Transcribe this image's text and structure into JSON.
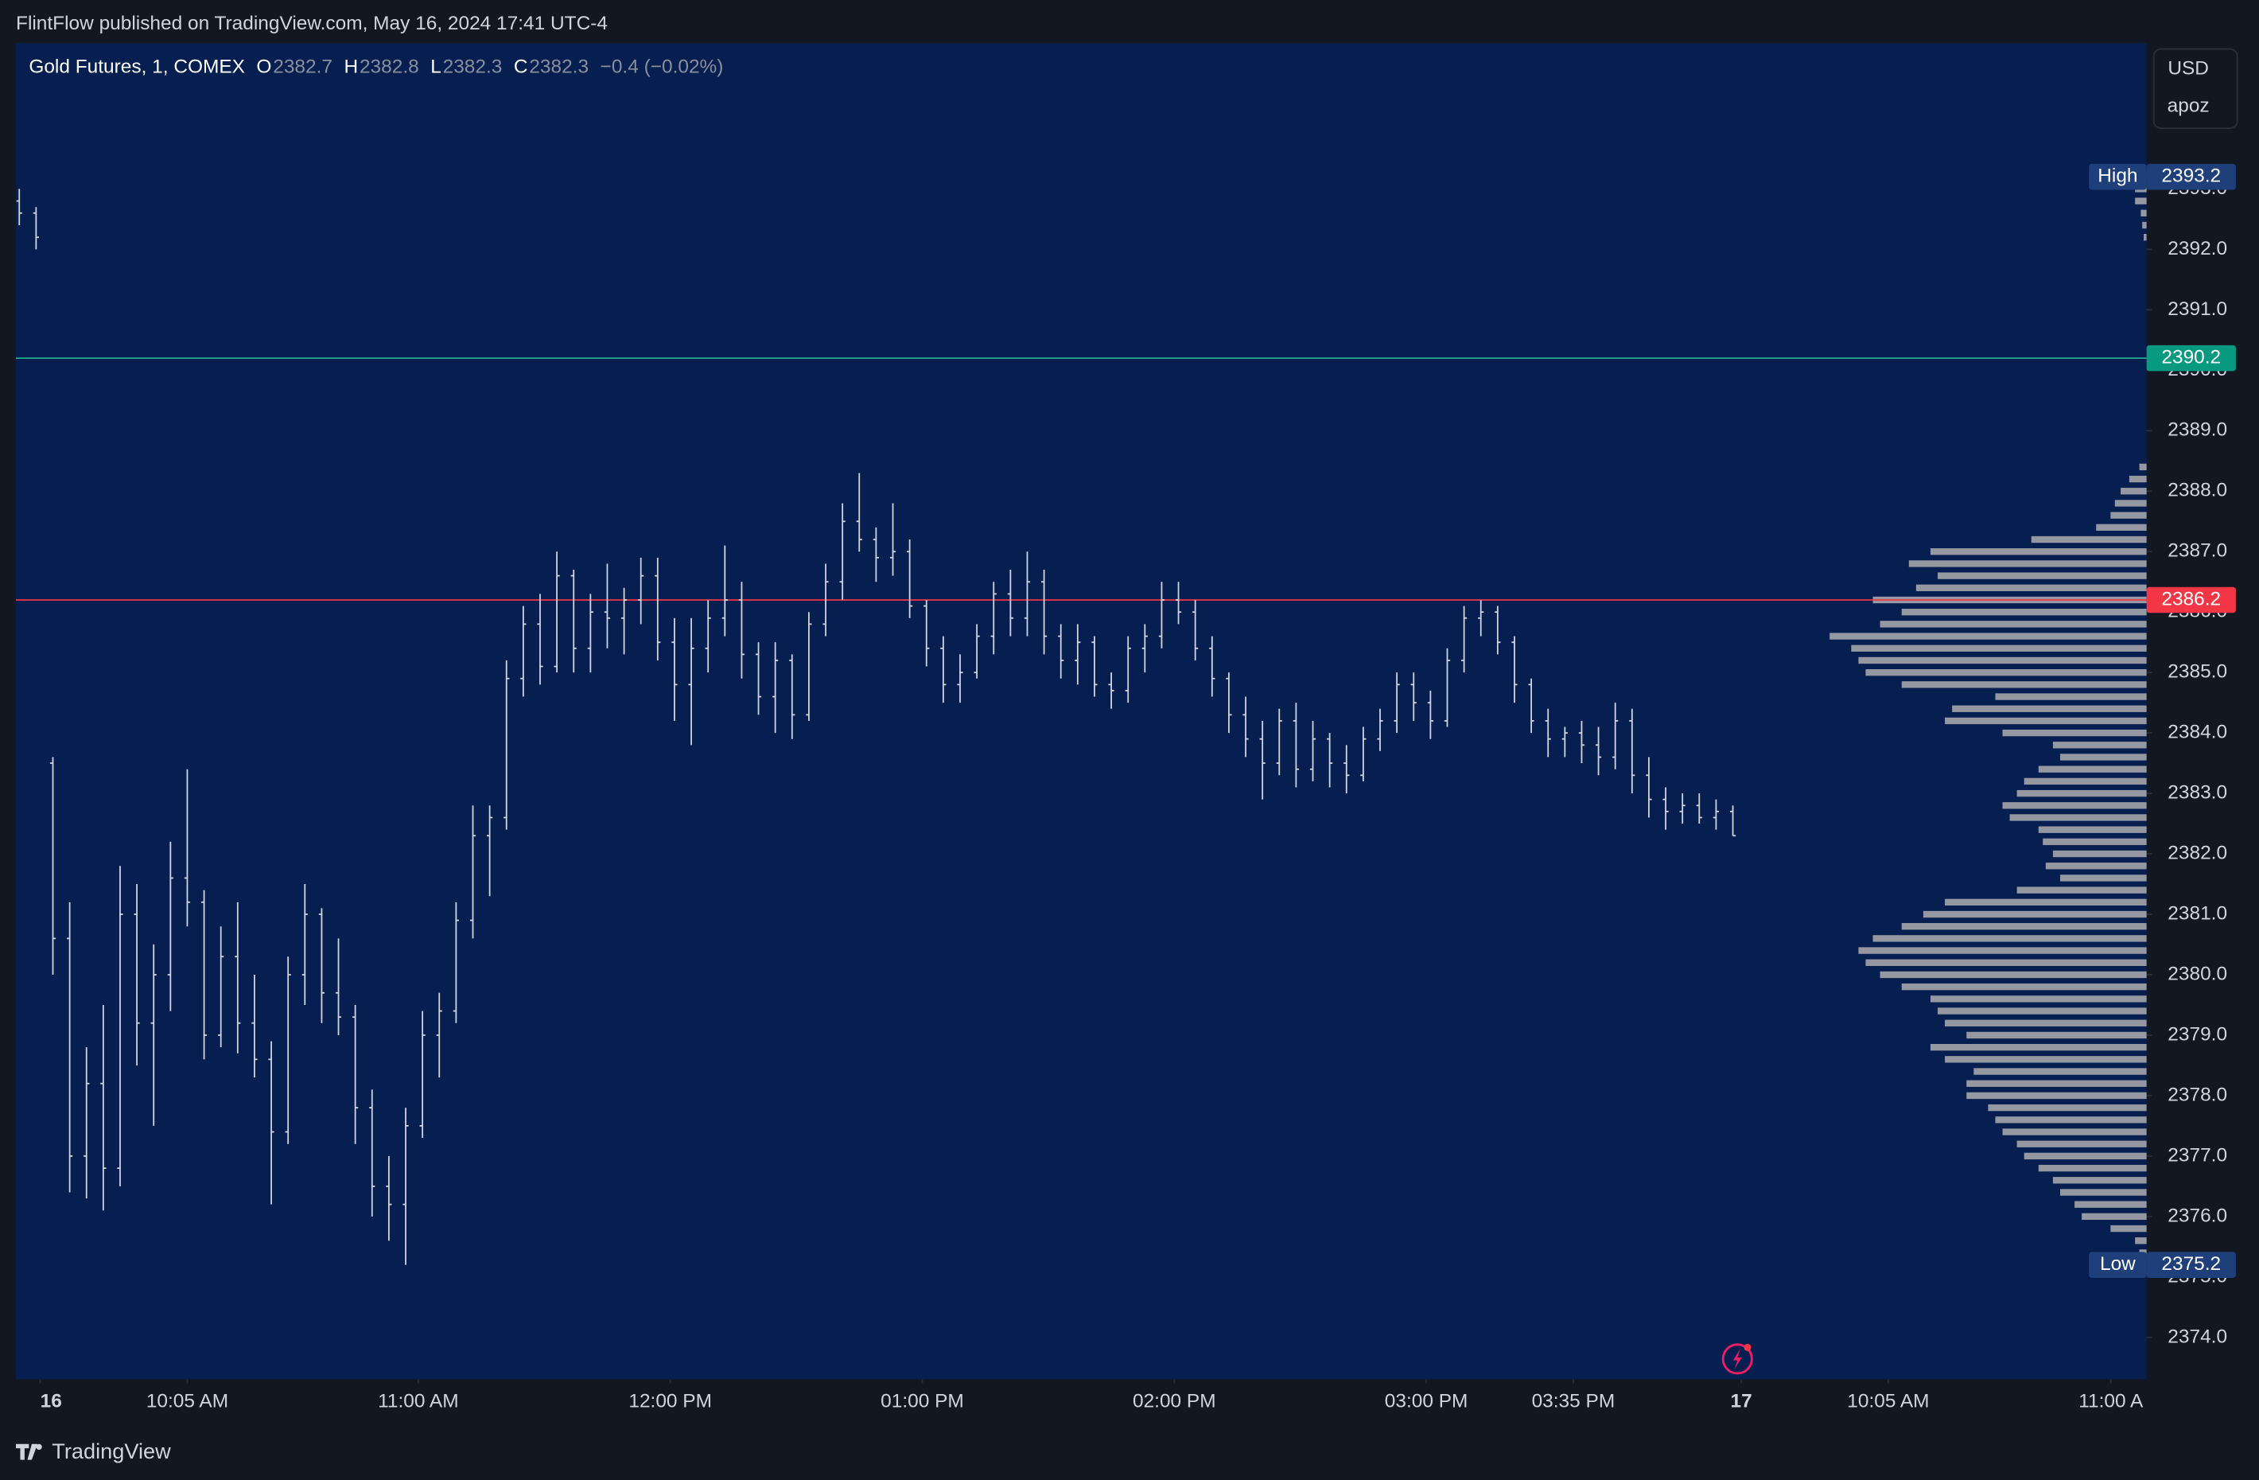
{
  "header": {
    "text": "FlintFlow published on TradingView.com, May 16, 2024 17:41 UTC-4"
  },
  "footer": {
    "brand": "TradingView"
  },
  "scale_box": {
    "currency": "USD",
    "mode": "apoz"
  },
  "chart_data": {
    "type": "ohlc",
    "legend": {
      "symbol": "Gold Futures, 1, COMEX",
      "o_label": "O",
      "open": 2382.7,
      "h_label": "H",
      "high": 2382.8,
      "l_label": "L",
      "low": 2382.3,
      "c_label": "C",
      "close": 2382.3,
      "change": "−0.4 (−0.02%)"
    },
    "color": "#d1d4dc",
    "x": [
      -5,
      -1,
      3,
      7,
      11,
      15,
      19,
      23,
      27,
      31,
      35,
      39,
      43,
      47,
      51,
      55,
      59,
      63,
      67,
      71,
      75,
      79,
      83,
      87,
      91,
      95,
      99,
      103,
      107,
      111,
      115,
      119,
      123,
      127,
      131,
      135,
      139,
      143,
      147,
      151,
      155,
      159,
      163,
      167,
      171,
      175,
      179,
      183,
      187,
      191,
      195,
      199,
      203,
      207,
      211,
      215,
      219,
      223,
      227,
      231,
      235,
      239,
      243,
      247,
      251,
      255,
      259,
      263,
      267,
      271,
      275,
      279,
      283,
      287,
      291,
      295,
      299,
      303,
      307,
      311,
      315,
      319,
      323,
      327,
      331,
      335,
      339,
      343,
      347,
      351,
      355,
      359,
      363,
      367,
      371,
      375,
      379,
      383,
      387,
      391,
      395,
      399,
      403
    ],
    "open": [
      2392.8,
      2392.6,
      2383.5,
      2380.6,
      2377.0,
      2378.2,
      2376.8,
      2381.0,
      2379.2,
      2380.0,
      2381.6,
      2381.2,
      2379.0,
      2380.3,
      2379.2,
      2378.6,
      2377.4,
      2380.0,
      2381.0,
      2379.7,
      2379.3,
      2377.8,
      2376.5,
      2376.2,
      2377.5,
      2379.0,
      2379.4,
      2380.9,
      2382.3,
      2382.6,
      2384.9,
      2385.8,
      2385.1,
      2386.6,
      2385.4,
      2386.0,
      2385.9,
      2386.2,
      2386.6,
      2385.5,
      2384.8,
      2385.4,
      2385.9,
      2386.2,
      2385.3,
      2384.6,
      2385.2,
      2384.3,
      2385.8,
      2386.5,
      2387.5,
      2387.2,
      2386.9,
      2387.0,
      2386.1,
      2385.4,
      2384.8,
      2385.0,
      2385.6,
      2386.3,
      2385.9,
      2386.5,
      2385.6,
      2385.2,
      2385.5,
      2384.8,
      2384.7,
      2385.4,
      2385.6,
      2386.2,
      2386.0,
      2385.4,
      2384.9,
      2384.3,
      2383.9,
      2383.5,
      2384.2,
      2383.4,
      2383.9,
      2383.5,
      2383.3,
      2383.9,
      2384.2,
      2384.8,
      2384.5,
      2384.2,
      2385.2,
      2385.9,
      2386.0,
      2385.5,
      2384.8,
      2384.2,
      2383.9,
      2384.0,
      2383.8,
      2383.6,
      2384.2,
      2383.3,
      2382.9,
      2382.7,
      2382.8,
      2382.6,
      2382.7
    ],
    "high": [
      2393.0,
      2392.7,
      2383.6,
      2381.2,
      2378.8,
      2379.5,
      2381.8,
      2381.5,
      2380.5,
      2382.2,
      2383.4,
      2381.4,
      2380.8,
      2381.2,
      2380.0,
      2378.9,
      2380.3,
      2381.5,
      2381.1,
      2380.6,
      2379.5,
      2378.1,
      2377.0,
      2377.8,
      2379.4,
      2379.7,
      2381.2,
      2382.8,
      2382.8,
      2385.2,
      2386.1,
      2386.3,
      2387.0,
      2386.7,
      2386.3,
      2386.8,
      2386.4,
      2386.9,
      2386.9,
      2385.9,
      2385.9,
      2386.2,
      2387.1,
      2386.5,
      2385.5,
      2385.5,
      2385.3,
      2386.0,
      2386.8,
      2387.8,
      2388.3,
      2387.4,
      2387.8,
      2387.2,
      2386.2,
      2385.6,
      2385.3,
      2385.8,
      2386.5,
      2386.7,
      2387.0,
      2386.7,
      2385.8,
      2385.8,
      2385.6,
      2385.0,
      2385.6,
      2385.8,
      2386.5,
      2386.5,
      2386.2,
      2385.6,
      2385.0,
      2384.6,
      2384.2,
      2384.4,
      2384.5,
      2384.2,
      2384.0,
      2383.8,
      2384.1,
      2384.4,
      2385.0,
      2385.0,
      2384.7,
      2385.4,
      2386.1,
      2386.2,
      2386.1,
      2385.6,
      2384.9,
      2384.4,
      2384.1,
      2384.2,
      2384.1,
      2384.5,
      2384.4,
      2383.6,
      2383.1,
      2383.0,
      2383.0,
      2382.9,
      2382.8
    ],
    "low": [
      2392.4,
      2392.0,
      2380.0,
      2376.4,
      2376.3,
      2376.1,
      2376.5,
      2378.5,
      2377.5,
      2379.4,
      2380.8,
      2378.6,
      2378.8,
      2378.7,
      2378.3,
      2376.2,
      2377.2,
      2379.5,
      2379.2,
      2379.0,
      2377.2,
      2376.0,
      2375.6,
      2375.2,
      2377.3,
      2378.3,
      2379.2,
      2380.6,
      2381.3,
      2382.4,
      2384.6,
      2384.8,
      2385.0,
      2385.0,
      2385.0,
      2385.4,
      2385.3,
      2385.8,
      2385.2,
      2384.2,
      2383.8,
      2385.0,
      2385.6,
      2384.9,
      2384.3,
      2384.0,
      2383.9,
      2384.2,
      2385.6,
      2386.2,
      2387.0,
      2386.5,
      2386.6,
      2385.9,
      2385.1,
      2384.5,
      2384.5,
      2384.9,
      2385.3,
      2385.6,
      2385.6,
      2385.3,
      2384.9,
      2384.8,
      2384.6,
      2384.4,
      2384.5,
      2385.0,
      2385.4,
      2385.8,
      2385.2,
      2384.6,
      2384.0,
      2383.6,
      2382.9,
      2383.3,
      2383.1,
      2383.2,
      2383.1,
      2383.0,
      2383.2,
      2383.7,
      2384.0,
      2384.2,
      2383.9,
      2384.1,
      2385.0,
      2385.6,
      2385.3,
      2384.5,
      2384.0,
      2383.6,
      2383.6,
      2383.5,
      2383.3,
      2383.4,
      2383.0,
      2382.6,
      2382.4,
      2382.5,
      2382.5,
      2382.4,
      2382.3
    ],
    "close": [
      2392.6,
      2392.2,
      2380.6,
      2377.0,
      2378.2,
      2376.8,
      2381.0,
      2379.2,
      2380.0,
      2381.6,
      2381.2,
      2379.0,
      2380.3,
      2379.2,
      2378.6,
      2377.4,
      2380.0,
      2381.0,
      2379.7,
      2379.3,
      2377.8,
      2376.5,
      2376.2,
      2377.5,
      2379.0,
      2379.4,
      2380.9,
      2382.3,
      2382.6,
      2384.9,
      2385.8,
      2385.1,
      2386.6,
      2385.4,
      2386.0,
      2385.9,
      2386.2,
      2386.6,
      2385.5,
      2384.8,
      2385.4,
      2385.9,
      2386.2,
      2385.3,
      2384.6,
      2385.2,
      2384.3,
      2385.8,
      2386.5,
      2387.5,
      2387.2,
      2386.9,
      2387.0,
      2386.1,
      2385.4,
      2384.8,
      2385.0,
      2385.6,
      2386.3,
      2385.9,
      2386.5,
      2385.6,
      2385.2,
      2385.5,
      2384.8,
      2384.7,
      2385.4,
      2385.6,
      2386.2,
      2386.0,
      2385.4,
      2384.9,
      2384.3,
      2383.9,
      2383.5,
      2384.2,
      2383.4,
      2383.9,
      2383.5,
      2383.3,
      2383.9,
      2384.2,
      2384.8,
      2384.5,
      2384.2,
      2385.2,
      2385.9,
      2386.0,
      2385.5,
      2384.8,
      2384.2,
      2383.9,
      2384.0,
      2383.8,
      2383.6,
      2384.2,
      2383.3,
      2382.9,
      2382.7,
      2382.8,
      2382.6,
      2382.7,
      2382.3
    ],
    "xlim": [
      -5.8,
      501.5
    ],
    "ylim": [
      2373.31,
      2395.41
    ],
    "xticks": [
      {
        "value": 0,
        "label": "16"
      },
      {
        "value": 35,
        "label": "10:05 AM"
      },
      {
        "value": 90,
        "label": "11:00 AM"
      },
      {
        "value": 150,
        "label": "12:00 PM"
      },
      {
        "value": 210,
        "label": "01:00 PM"
      },
      {
        "value": 270,
        "label": "02:00 PM"
      },
      {
        "value": 330,
        "label": "03:00 PM"
      },
      {
        "value": 365,
        "label": "03:35 PM"
      },
      {
        "value": 405,
        "label": "17"
      },
      {
        "value": 440,
        "label": "10:05 AM"
      },
      {
        "value": 493,
        "label": "11:00 A"
      }
    ],
    "yticks": [
      {
        "value": 2374,
        "label": "2374.0"
      },
      {
        "value": 2375,
        "label": "2375.0"
      },
      {
        "value": 2376,
        "label": "2376.0"
      },
      {
        "value": 2377,
        "label": "2377.0"
      },
      {
        "value": 2378,
        "label": "2378.0"
      },
      {
        "value": 2379,
        "label": "2379.0"
      },
      {
        "value": 2380,
        "label": "2380.0"
      },
      {
        "value": 2381,
        "label": "2381.0"
      },
      {
        "value": 2382,
        "label": "2382.0"
      },
      {
        "value": 2383,
        "label": "2383.0"
      },
      {
        "value": 2384,
        "label": "2384.0"
      },
      {
        "value": 2385,
        "label": "2385.0"
      },
      {
        "value": 2386,
        "label": "2386.0"
      },
      {
        "value": 2387,
        "label": "2387.0"
      },
      {
        "value": 2388,
        "label": "2388.0"
      },
      {
        "value": 2389,
        "label": "2389.0"
      },
      {
        "value": 2390,
        "label": "2390.0"
      },
      {
        "value": 2391,
        "label": "2391.0"
      },
      {
        "value": 2392,
        "label": "2392.0"
      },
      {
        "value": 2393,
        "label": "2393.0"
      }
    ],
    "grid": false,
    "levels": [
      {
        "value": 2390.2,
        "color": "#22ab94"
      },
      {
        "value": 2386.2,
        "color": "#f23645"
      }
    ],
    "high_marker": {
      "label": "High",
      "value": 2393.2
    },
    "low_marker": {
      "label": "Low",
      "value": 2375.2
    },
    "profile": {
      "color": "#9598a1",
      "prices": [
        2393.2,
        2393.0,
        2392.8,
        2392.6,
        2392.4,
        2392.2,
        2388.4,
        2388.2,
        2388.0,
        2387.8,
        2387.6,
        2387.4,
        2387.2,
        2387.0,
        2386.8,
        2386.6,
        2386.4,
        2386.2,
        2386.0,
        2385.8,
        2385.6,
        2385.4,
        2385.2,
        2385.0,
        2384.8,
        2384.6,
        2384.4,
        2384.2,
        2384.0,
        2383.8,
        2383.6,
        2383.4,
        2383.2,
        2383.0,
        2382.8,
        2382.6,
        2382.4,
        2382.2,
        2382.0,
        2381.8,
        2381.6,
        2381.4,
        2381.2,
        2381.0,
        2380.8,
        2380.6,
        2380.4,
        2380.2,
        2380.0,
        2379.8,
        2379.6,
        2379.4,
        2379.2,
        2379.0,
        2378.8,
        2378.6,
        2378.4,
        2378.2,
        2378.0,
        2377.8,
        2377.6,
        2377.4,
        2377.2,
        2377.0,
        2376.8,
        2376.6,
        2376.4,
        2376.2,
        2376.0,
        2375.8,
        2375.6,
        2375.4
      ],
      "volumes": [
        5,
        8,
        8,
        4,
        3,
        2,
        5,
        12,
        18,
        22,
        25,
        35,
        80,
        150,
        165,
        145,
        160,
        190,
        170,
        185,
        220,
        205,
        200,
        195,
        170,
        105,
        135,
        140,
        100,
        65,
        60,
        75,
        85,
        90,
        100,
        95,
        75,
        72,
        65,
        70,
        60,
        90,
        140,
        155,
        170,
        190,
        200,
        195,
        185,
        170,
        150,
        145,
        140,
        125,
        150,
        140,
        120,
        125,
        125,
        110,
        105,
        100,
        90,
        85,
        75,
        65,
        60,
        50,
        45,
        25,
        8,
        5
      ]
    }
  }
}
